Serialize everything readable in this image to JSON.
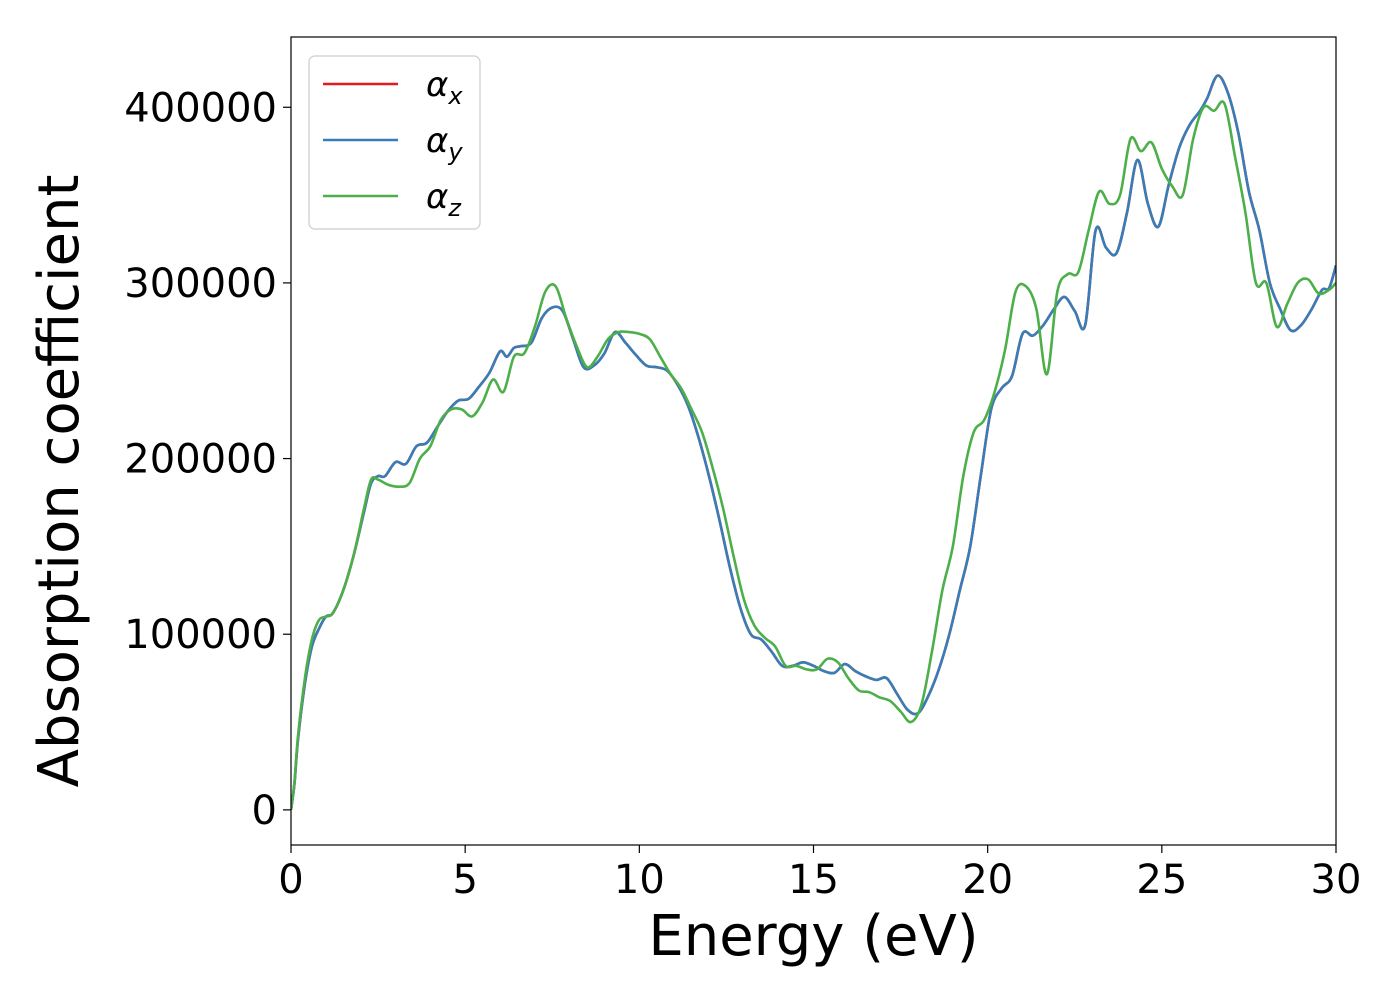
{
  "chart_data": {
    "type": "line",
    "title": "",
    "xlabel": "Energy (eV)",
    "ylabel": "Absorption coefficient",
    "xlim": [
      0,
      30
    ],
    "ylim": [
      -20000,
      440000
    ],
    "xticks": [
      0,
      5,
      10,
      15,
      20,
      25,
      30
    ],
    "xtick_labels": [
      "0",
      "5",
      "10",
      "15",
      "20",
      "25",
      "30"
    ],
    "yticks": [
      0,
      100000,
      200000,
      300000,
      400000
    ],
    "ytick_labels": [
      "0",
      "100000",
      "200000",
      "300000",
      "400000"
    ],
    "grid": false,
    "legend_position": "top-left",
    "series": [
      {
        "name": "α_x",
        "label_main": "α",
        "label_sub": "x",
        "color": "#e41a1c",
        "x": [
          0,
          0.1,
          0.2,
          0.4,
          0.6,
          0.8,
          1.0,
          1.2,
          1.5,
          1.8,
          2.1,
          2.3,
          2.5,
          2.7,
          3.0,
          3.3,
          3.6,
          3.9,
          4.2,
          4.5,
          4.8,
          5.1,
          5.4,
          5.7,
          6.0,
          6.2,
          6.4,
          6.6,
          6.9,
          7.2,
          7.5,
          7.8,
          8.1,
          8.4,
          8.7,
          9.0,
          9.3,
          9.6,
          9.9,
          10.2,
          10.5,
          10.8,
          11.1,
          11.4,
          11.7,
          12.0,
          12.3,
          12.6,
          12.9,
          13.2,
          13.5,
          13.8,
          14.1,
          14.4,
          14.7,
          15.0,
          15.3,
          15.6,
          15.9,
          16.2,
          16.5,
          16.8,
          17.1,
          17.4,
          17.7,
          18.0,
          18.3,
          18.6,
          18.9,
          19.2,
          19.5,
          19.8,
          20.1,
          20.4,
          20.7,
          21.0,
          21.3,
          21.6,
          21.9,
          22.2,
          22.5,
          22.8,
          23.1,
          23.4,
          23.7,
          24.0,
          24.3,
          24.6,
          24.9,
          25.2,
          25.5,
          25.8,
          26.1,
          26.3,
          26.6,
          26.9,
          27.2,
          27.5,
          27.8,
          28.1,
          28.4,
          28.7,
          29.0,
          29.3,
          29.6,
          29.8,
          30.0
        ],
        "y": [
          0,
          15000,
          40000,
          72000,
          93000,
          103000,
          110000,
          112000,
          125000,
          145000,
          170000,
          186000,
          190000,
          190000,
          198000,
          197000,
          207000,
          209000,
          218000,
          227000,
          233000,
          234000,
          241000,
          249000,
          261000,
          258000,
          263000,
          264000,
          266000,
          280000,
          286000,
          284000,
          268000,
          252000,
          253000,
          260000,
          272000,
          266000,
          259000,
          253000,
          252000,
          250000,
          242000,
          230000,
          212000,
          190000,
          165000,
          138000,
          115000,
          100000,
          97000,
          90000,
          82000,
          82000,
          84000,
          82000,
          79000,
          78000,
          83000,
          79000,
          76000,
          74000,
          75000,
          66000,
          57000,
          55000,
          65000,
          80000,
          100000,
          125000,
          150000,
          190000,
          228000,
          240000,
          247000,
          271000,
          270000,
          276000,
          285000,
          292000,
          284000,
          276000,
          330000,
          320000,
          317000,
          340000,
          370000,
          345000,
          332000,
          356000,
          377000,
          390000,
          398000,
          405000,
          418000,
          408000,
          385000,
          352000,
          330000,
          300000,
          285000,
          273000,
          276000,
          285000,
          296000,
          297000,
          310000
        ]
      },
      {
        "name": "α_y",
        "label_main": "α",
        "label_sub": "y",
        "color": "#377eb8",
        "x": [
          0,
          0.1,
          0.2,
          0.4,
          0.6,
          0.8,
          1.0,
          1.2,
          1.5,
          1.8,
          2.1,
          2.3,
          2.5,
          2.7,
          3.0,
          3.3,
          3.6,
          3.9,
          4.2,
          4.5,
          4.8,
          5.1,
          5.4,
          5.7,
          6.0,
          6.2,
          6.4,
          6.6,
          6.9,
          7.2,
          7.5,
          7.8,
          8.1,
          8.4,
          8.7,
          9.0,
          9.3,
          9.6,
          9.9,
          10.2,
          10.5,
          10.8,
          11.1,
          11.4,
          11.7,
          12.0,
          12.3,
          12.6,
          12.9,
          13.2,
          13.5,
          13.8,
          14.1,
          14.4,
          14.7,
          15.0,
          15.3,
          15.6,
          15.9,
          16.2,
          16.5,
          16.8,
          17.1,
          17.4,
          17.7,
          18.0,
          18.3,
          18.6,
          18.9,
          19.2,
          19.5,
          19.8,
          20.1,
          20.4,
          20.7,
          21.0,
          21.3,
          21.6,
          21.9,
          22.2,
          22.5,
          22.8,
          23.1,
          23.4,
          23.7,
          24.0,
          24.3,
          24.6,
          24.9,
          25.2,
          25.5,
          25.8,
          26.1,
          26.3,
          26.6,
          26.9,
          27.2,
          27.5,
          27.8,
          28.1,
          28.4,
          28.7,
          29.0,
          29.3,
          29.6,
          29.8,
          30.0
        ],
        "y": [
          0,
          15000,
          40000,
          72000,
          93000,
          103000,
          110000,
          112000,
          125000,
          145000,
          170000,
          186000,
          190000,
          190000,
          198000,
          197000,
          207000,
          209000,
          218000,
          227000,
          233000,
          234000,
          241000,
          249000,
          261000,
          258000,
          263000,
          264000,
          266000,
          280000,
          286000,
          284000,
          268000,
          252000,
          253000,
          260000,
          272000,
          266000,
          259000,
          253000,
          252000,
          250000,
          242000,
          230000,
          212000,
          190000,
          165000,
          138000,
          115000,
          100000,
          97000,
          90000,
          82000,
          82000,
          84000,
          82000,
          79000,
          78000,
          83000,
          79000,
          76000,
          74000,
          75000,
          66000,
          57000,
          55000,
          65000,
          80000,
          100000,
          125000,
          150000,
          190000,
          228000,
          240000,
          247000,
          271000,
          270000,
          276000,
          285000,
          292000,
          284000,
          276000,
          330000,
          320000,
          317000,
          340000,
          370000,
          345000,
          332000,
          356000,
          377000,
          390000,
          398000,
          405000,
          418000,
          408000,
          385000,
          352000,
          330000,
          300000,
          285000,
          273000,
          276000,
          285000,
          296000,
          297000,
          310000
        ]
      },
      {
        "name": "α_z",
        "label_main": "α",
        "label_sub": "z",
        "color": "#4daf4a",
        "x": [
          0,
          0.1,
          0.2,
          0.4,
          0.6,
          0.8,
          1.0,
          1.2,
          1.5,
          1.8,
          2.1,
          2.3,
          2.5,
          2.8,
          3.1,
          3.4,
          3.7,
          4.0,
          4.3,
          4.6,
          4.9,
          5.2,
          5.5,
          5.8,
          6.1,
          6.4,
          6.7,
          7.0,
          7.3,
          7.6,
          7.9,
          8.2,
          8.5,
          8.8,
          9.1,
          9.4,
          9.7,
          10.0,
          10.3,
          10.6,
          10.9,
          11.2,
          11.5,
          11.8,
          12.1,
          12.4,
          12.7,
          13.0,
          13.3,
          13.6,
          13.9,
          14.2,
          14.5,
          14.8,
          15.1,
          15.4,
          15.7,
          16.0,
          16.3,
          16.6,
          16.9,
          17.2,
          17.5,
          17.8,
          18.1,
          18.4,
          18.7,
          19.0,
          19.3,
          19.6,
          19.9,
          20.2,
          20.5,
          20.8,
          21.1,
          21.4,
          21.7,
          22.0,
          22.3,
          22.6,
          22.9,
          23.2,
          23.5,
          23.8,
          24.1,
          24.4,
          24.7,
          25.0,
          25.3,
          25.6,
          25.9,
          26.2,
          26.5,
          26.8,
          27.1,
          27.4,
          27.7,
          28.0,
          28.3,
          28.6,
          28.9,
          29.2,
          29.5,
          29.8,
          30.0
        ],
        "y": [
          0,
          16000,
          42000,
          75000,
          97000,
          108000,
          110000,
          112000,
          125000,
          145000,
          172000,
          188000,
          188000,
          185000,
          184000,
          186000,
          200000,
          207000,
          222000,
          228000,
          228000,
          224000,
          232000,
          245000,
          238000,
          258000,
          260000,
          275000,
          295000,
          298000,
          280000,
          264000,
          252000,
          258000,
          268000,
          272000,
          272000,
          271000,
          268000,
          258000,
          248000,
          240000,
          228000,
          215000,
          195000,
          172000,
          145000,
          120000,
          105000,
          98000,
          93000,
          82000,
          82000,
          80000,
          80000,
          86000,
          84000,
          75000,
          68000,
          67000,
          64000,
          62000,
          56000,
          50000,
          60000,
          90000,
          125000,
          150000,
          190000,
          215000,
          222000,
          238000,
          262000,
          295000,
          298000,
          285000,
          248000,
          295000,
          305000,
          306000,
          330000,
          352000,
          345000,
          350000,
          382000,
          375000,
          380000,
          365000,
          355000,
          350000,
          382000,
          400000,
          398000,
          402000,
          372000,
          340000,
          300000,
          300000,
          275000,
          288000,
          300000,
          302000,
          294000,
          296000,
          300000
        ]
      }
    ]
  }
}
